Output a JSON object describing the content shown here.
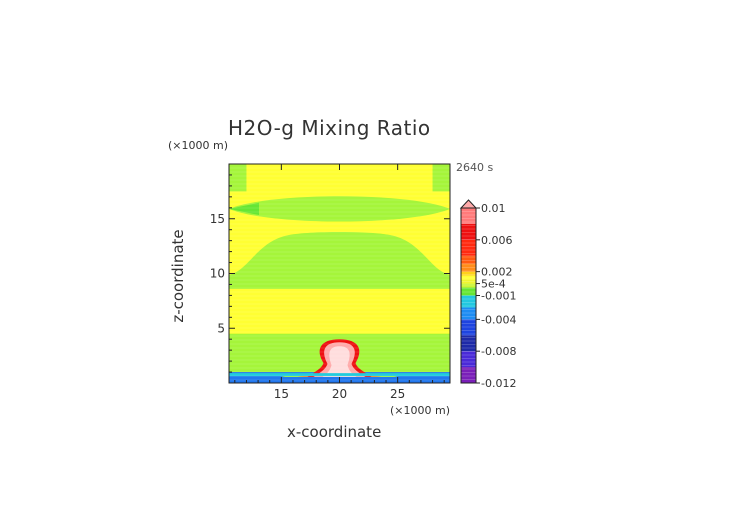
{
  "title": "H2O-g Mixing Ratio",
  "timestamp": "2640 s",
  "colors": {
    "background_yellow": "#ffff33",
    "light_green": "#a5f53a",
    "green": "#66e633",
    "cyan": "#22ccdd",
    "blue": "#2277ee",
    "orange": "#ff8c1a",
    "red": "#ee1111",
    "pink": "#ffaaaa",
    "light_pink": "#ffdddd"
  },
  "chart_data": {
    "type": "heatmap",
    "title": "H2O-g Mixing Ratio",
    "xlabel": "x-coordinate",
    "ylabel": "z-coordinate",
    "x_unit": "(×1000 m)",
    "y_unit": "(×1000 m)",
    "xlim": [
      10.5,
      29.5
    ],
    "ylim": [
      0,
      20
    ],
    "x_ticks": [
      "15",
      "20",
      "25"
    ],
    "y_ticks": [
      "5",
      "10",
      "15"
    ],
    "x_tick_values": [
      15,
      20,
      25
    ],
    "y_tick_values": [
      5,
      10,
      15
    ],
    "colorbar": {
      "labels": [
        "0.01",
        "0.006",
        "0.002",
        "5e-4",
        "-0.001",
        "-0.004",
        "-0.008",
        "-0.012"
      ],
      "label_values": [
        0.01,
        0.006,
        0.002,
        0.0005,
        -0.001,
        -0.004,
        -0.008,
        -0.012
      ],
      "min": -0.012,
      "max": 0.01,
      "extend": "max",
      "stops": [
        {
          "value": -0.012,
          "color": "#7a1fb8"
        },
        {
          "value": -0.01,
          "color": "#4a2ad8"
        },
        {
          "value": -0.008,
          "color": "#1e2aa8"
        },
        {
          "value": -0.006,
          "color": "#1e44e0"
        },
        {
          "value": -0.004,
          "color": "#1d8cf2"
        },
        {
          "value": -0.0025,
          "color": "#22c8e0"
        },
        {
          "value": -0.001,
          "color": "#66e633"
        },
        {
          "value": 0.0,
          "color": "#ccf536"
        },
        {
          "value": 0.0005,
          "color": "#f0f530"
        },
        {
          "value": 0.001,
          "color": "#ffff33"
        },
        {
          "value": 0.0015,
          "color": "#ffd21a"
        },
        {
          "value": 0.002,
          "color": "#ff8c1a"
        },
        {
          "value": 0.003,
          "color": "#ff5a10"
        },
        {
          "value": 0.004,
          "color": "#ff2a10"
        },
        {
          "value": 0.006,
          "color": "#ee1111"
        },
        {
          "value": 0.008,
          "color": "#ff7a7a"
        },
        {
          "value": 0.01,
          "color": "#ffaaaa"
        }
      ]
    },
    "regions": [
      {
        "name": "upper-left-band",
        "shape": "rect",
        "x": [
          10.5,
          12.0
        ],
        "y": [
          17.5,
          20.0
        ],
        "level": "light-green"
      },
      {
        "name": "upper-right-band",
        "shape": "rect",
        "x": [
          28.0,
          29.5
        ],
        "y": [
          17.5,
          20.0
        ],
        "level": "light-green"
      },
      {
        "name": "lens-15km",
        "shape": "lens",
        "x": [
          10.5,
          29.5
        ],
        "y_center": 15.9,
        "half_thickness": 0.7,
        "level": "light-green"
      },
      {
        "name": "middle-green-body",
        "shape": "plateau",
        "x": [
          10.5,
          29.5
        ],
        "y": [
          8.6,
          13.7
        ],
        "level": "light-green"
      },
      {
        "name": "lower-green-layer",
        "shape": "rect",
        "x": [
          10.5,
          29.5
        ],
        "y": [
          0.8,
          4.5
        ],
        "level": "light-green"
      },
      {
        "name": "ground-blue-layer",
        "shape": "rect",
        "x": [
          10.5,
          29.5
        ],
        "y": [
          0.0,
          1.0
        ],
        "level": "blue"
      },
      {
        "name": "plume",
        "shape": "plume",
        "x_center": 20.0,
        "y_top": 3.9,
        "level": "red-pink"
      }
    ]
  }
}
